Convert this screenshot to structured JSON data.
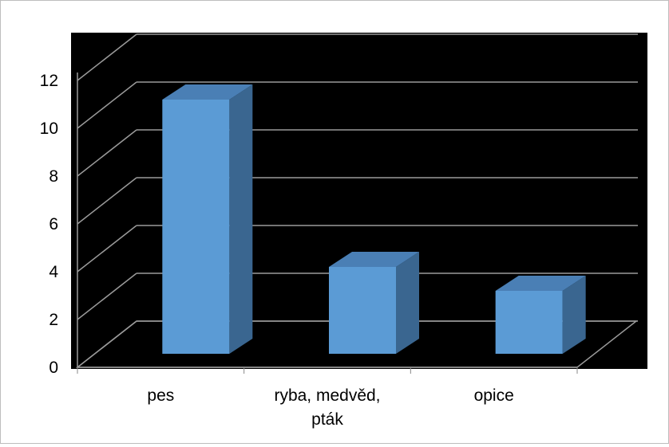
{
  "chart_data": {
    "type": "bar",
    "style": "3d-column",
    "title": "",
    "xlabel": "",
    "ylabel": "",
    "categories": [
      "pes",
      "ryba, medvěd, pták",
      "opice"
    ],
    "category_lines": [
      [
        "pes"
      ],
      [
        "ryba, medvěd,",
        "pták"
      ],
      [
        "opice"
      ]
    ],
    "values": [
      11,
      4,
      3
    ],
    "ylim": [
      0,
      12
    ],
    "yticks": [
      "0",
      "2",
      "4",
      "6",
      "8",
      "10",
      "12"
    ],
    "grid": true,
    "legend": "none",
    "colors": {
      "plot_background": "#000000",
      "bar_front": "#5b9bd5",
      "bar_top": "#4a7fb5",
      "bar_side": "#3a6690",
      "grid": "#9a9a9a"
    }
  }
}
